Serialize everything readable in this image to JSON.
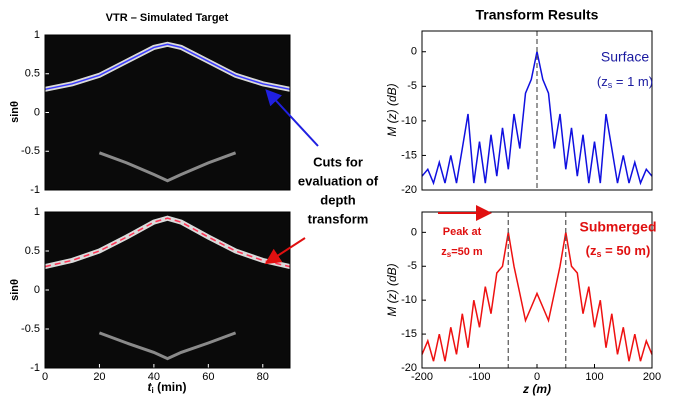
{
  "chart_data": [
    {
      "type": "line",
      "title": "VTR – Simulated Target",
      "ylabel": "sinθ",
      "background": "#0a0a0a",
      "xlim": [
        0,
        90
      ],
      "ylim": [
        -1,
        1
      ],
      "yticks": [
        -1,
        -0.5,
        0,
        0.5,
        1
      ],
      "x": [
        0,
        10,
        20,
        30,
        40,
        45,
        50,
        60,
        70,
        80,
        90
      ],
      "series": [
        {
          "color": "#3a3aff",
          "values": [
            0.3,
            0.37,
            0.48,
            0.66,
            0.84,
            0.88,
            0.84,
            0.66,
            0.48,
            0.37,
            0.3
          ]
        },
        {
          "color": "#8a8a8a",
          "values": [
            null,
            null,
            -0.52,
            -0.65,
            -0.8,
            -0.88,
            -0.8,
            -0.65,
            -0.52,
            null,
            null
          ]
        }
      ]
    },
    {
      "type": "line",
      "ylabel": "sinθ",
      "xlabel": [
        "t",
        "i",
        " (min)"
      ],
      "background": "#0a0a0a",
      "dashed_first": true,
      "xlim": [
        0,
        90
      ],
      "ylim": [
        -1,
        1
      ],
      "yticks": [
        -1,
        -0.5,
        0,
        0.5,
        1
      ],
      "xticks": [
        0,
        20,
        40,
        60,
        80
      ],
      "x": [
        0,
        10,
        20,
        30,
        40,
        45,
        50,
        60,
        70,
        80,
        90
      ],
      "series": [
        {
          "color": "#ff3355",
          "values": [
            0.3,
            0.38,
            0.5,
            0.68,
            0.87,
            0.92,
            0.87,
            0.68,
            0.5,
            0.38,
            0.3
          ]
        },
        {
          "color": "#8a8a8a",
          "values": [
            null,
            null,
            -0.55,
            -0.68,
            -0.8,
            -0.88,
            -0.8,
            -0.68,
            -0.55,
            null,
            null
          ]
        }
      ]
    },
    {
      "type": "line",
      "title": "Transform Results",
      "ylabel": "M (z) (dB)",
      "background": "#ffffff",
      "xlim": [
        -200,
        200
      ],
      "ylim": [
        -20,
        3
      ],
      "yticks": [
        0,
        -5,
        -10,
        -15,
        -20
      ],
      "cuts": [
        0
      ],
      "annotations": [
        "Surface",
        [
          "(z",
          "s",
          " = 1 m)"
        ]
      ],
      "x": [
        -200,
        -190,
        -180,
        -170,
        -160,
        -150,
        -140,
        -130,
        -120,
        -110,
        -100,
        -90,
        -80,
        -70,
        -60,
        -50,
        -40,
        -30,
        -20,
        -10,
        0,
        10,
        20,
        30,
        40,
        50,
        60,
        70,
        80,
        90,
        100,
        110,
        120,
        130,
        140,
        150,
        160,
        170,
        180,
        190,
        200
      ],
      "series": [
        {
          "color": "#1010e0",
          "values": [
            -18,
            -17,
            -19,
            -16,
            -19,
            -15,
            -19,
            -14,
            -9,
            -19,
            -13,
            -19,
            -12,
            -18,
            -11,
            -17,
            -9,
            -14,
            -6,
            -4,
            0,
            -4,
            -6,
            -14,
            -9,
            -17,
            -11,
            -18,
            -12,
            -19,
            -13,
            -19,
            -9,
            -14,
            -19,
            -15,
            -19,
            -16,
            -19,
            -17,
            -18
          ]
        }
      ]
    },
    {
      "type": "line",
      "xlabel": [
        "z (m)"
      ],
      "ylabel": "M (z) (dB)",
      "background": "#ffffff",
      "xlim": [
        -200,
        200
      ],
      "ylim": [
        -20,
        3
      ],
      "yticks": [
        0,
        -5,
        -10,
        -15,
        -20
      ],
      "xticks": [
        -200,
        -100,
        0,
        100,
        200
      ],
      "cuts": [
        -50,
        50
      ],
      "annotations": [
        "Submerged",
        [
          "(z",
          "s",
          " = 50 m)"
        ],
        "Peak at",
        [
          "z",
          "s",
          "=50 m"
        ]
      ],
      "x": [
        -200,
        -190,
        -180,
        -170,
        -160,
        -150,
        -140,
        -130,
        -120,
        -110,
        -100,
        -90,
        -80,
        -70,
        -60,
        -50,
        -40,
        -30,
        -20,
        -10,
        0,
        10,
        20,
        30,
        40,
        50,
        60,
        70,
        80,
        90,
        100,
        110,
        120,
        130,
        140,
        150,
        160,
        170,
        180,
        190,
        200
      ],
      "series": [
        {
          "color": "#ee1111",
          "values": [
            -18,
            -16,
            -19,
            -15,
            -19,
            -14,
            -18,
            -12,
            -17,
            -10,
            -14,
            -8,
            -12,
            -6,
            -5,
            0,
            -5,
            -9,
            -13,
            -11,
            -9,
            -11,
            -13,
            -9,
            -5,
            0,
            -5,
            -6,
            -12,
            -8,
            -14,
            -10,
            -17,
            -12,
            -18,
            -14,
            -19,
            -15,
            -19,
            -16,
            -18
          ]
        }
      ]
    }
  ],
  "note": [
    "Cuts for",
    "evaluation of",
    "depth",
    "transform"
  ]
}
